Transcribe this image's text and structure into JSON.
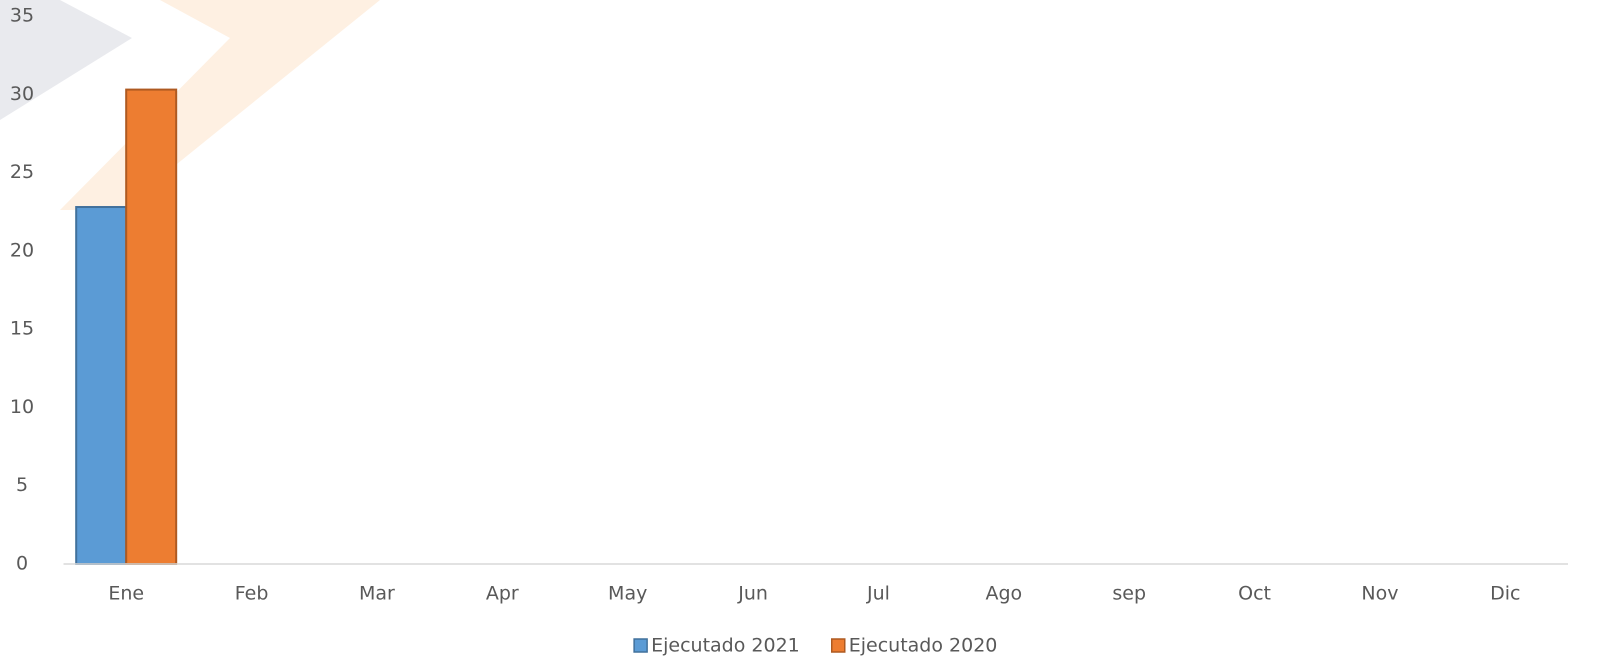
{
  "chart_data": {
    "type": "bar",
    "categories": [
      "Ene",
      "Feb",
      "Mar",
      "Apr",
      "May",
      "Jun",
      "Jul",
      "Ago",
      "sep",
      "Oct",
      "Nov",
      "Dic"
    ],
    "series": [
      {
        "name": "Ejecutado 2021",
        "color": "#5b9bd5",
        "values": [
          22.8,
          null,
          null,
          null,
          null,
          null,
          null,
          null,
          null,
          null,
          null,
          null
        ]
      },
      {
        "name": "Ejecutado 2020",
        "color": "#ed7d31",
        "values": [
          30.3,
          null,
          null,
          null,
          null,
          null,
          null,
          null,
          null,
          null,
          null,
          null
        ]
      }
    ],
    "ylim": [
      0,
      35
    ],
    "yticks": [
      0,
      5,
      10,
      15,
      20,
      25,
      30,
      35
    ],
    "grid": false,
    "legend": "bottom"
  }
}
